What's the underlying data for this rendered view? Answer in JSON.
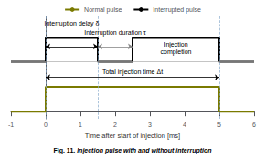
{
  "chart_data": {
    "type": "line",
    "caption_label": "Fig. 11.",
    "caption": "Injection pulse with and without interruption",
    "xlabel": "Time after start of injection [ms]",
    "xlim": [
      -1,
      6
    ],
    "xticks": [
      -1,
      0,
      1,
      2,
      3,
      4,
      5,
      6
    ],
    "ylim": [
      -0.15,
      2.0
    ],
    "tick_labels": "x",
    "grid": false,
    "legend": "top",
    "series": [
      {
        "name": "Normal pulse",
        "color": "#7a7a00",
        "x": [
          -1,
          0,
          0,
          5,
          5,
          6
        ],
        "values": [
          0.0,
          0.0,
          0.52,
          0.52,
          0.0,
          0.0
        ]
      },
      {
        "name": "Interrupted pulse",
        "color": "#000000",
        "x": [
          -1,
          0,
          0,
          1.5,
          1.5,
          2.5,
          2.5,
          5.0,
          5.0,
          6
        ],
        "values": [
          1.05,
          1.05,
          1.55,
          1.55,
          1.05,
          1.05,
          1.55,
          1.55,
          1.05,
          1.05
        ]
      }
    ],
    "reference_lines": {
      "x": [
        0,
        1.5,
        2.5,
        5.0
      ],
      "x_color": "#88aacc",
      "y": [
        1.05
      ],
      "y_color": "#aaaaaa"
    },
    "annotations": [
      {
        "text": "Interruption delay δ",
        "arrow_x": [
          0,
          1.5
        ],
        "y": 1.37,
        "color": "#000000"
      },
      {
        "text": "Interruption duration τ",
        "arrow_x": [
          1.5,
          2.5
        ],
        "y": 1.37,
        "color": "#888888"
      },
      {
        "text": "Total injection time Δt",
        "arrow_x": [
          0,
          5.0
        ],
        "y": 0.72,
        "color": "#000000"
      },
      {
        "text": "Injection\ncompletion",
        "x": 3.75,
        "y": 1.55
      }
    ]
  }
}
